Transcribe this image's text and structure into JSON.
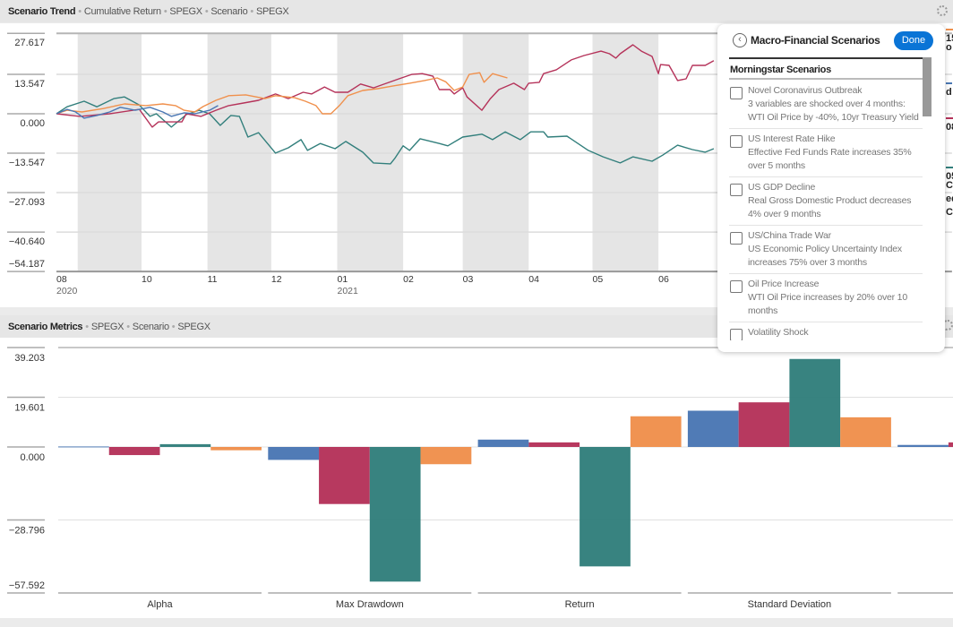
{
  "trend_header": {
    "title": "Scenario Trend",
    "crumbs": [
      "Cumulative Return",
      "SPEGX",
      "Scenario",
      "SPEGX"
    ]
  },
  "metrics_header": {
    "title": "Scenario Metrics",
    "crumbs": [
      "SPEGX",
      "Scenario",
      "SPEGX"
    ]
  },
  "legend_fragments": [
    {
      "text": "15",
      "color": "#f0904c"
    },
    {
      "text": "o",
      "color": null
    },
    {
      "text": "d",
      "color": "#4a77b4"
    },
    {
      "text": "08",
      "color": "#b5335a"
    },
    {
      "text": "05",
      "color": "#327f7c"
    },
    {
      "text": "C",
      "color": null
    },
    {
      "text": "eq",
      "color": null
    },
    {
      "text": "Cr",
      "color": null
    }
  ],
  "popup": {
    "title": "Macro-Financial Scenarios",
    "done_label": "Done",
    "section": "Morningstar Scenarios",
    "items": [
      {
        "title": "Novel Coronavirus Outbreak",
        "desc": "3 variables are shocked over 4 months: WTI Oil Price by -40%, 10yr Treasury Yield by…",
        "checked": false
      },
      {
        "title": "US Interest Rate Hike",
        "desc": "Effective Fed Funds Rate increases 35% over 5 months",
        "checked": false
      },
      {
        "title": "US GDP Decline",
        "desc": "Real Gross Domestic Product decreases 4% over 9 months",
        "checked": false
      },
      {
        "title": "US/China Trade War",
        "desc": "US Economic Policy Uncertainty Index increases 75% over 3 months",
        "checked": false
      },
      {
        "title": "Oil Price Increase",
        "desc": "WTI Oil Price increases by 20% over 10 months",
        "checked": false
      },
      {
        "title": "Volatility Shock",
        "desc": "",
        "checked": false
      }
    ]
  },
  "chart_data": [
    {
      "type": "line",
      "ylim": [
        -54.187,
        27.617
      ],
      "yticks": [
        27.617,
        13.547,
        0.0,
        -13.547,
        -27.093,
        -40.64,
        -54.187
      ],
      "ytick_labels": [
        "27.617",
        "13.547",
        "0.000",
        "−13.547",
        "−27.093",
        "−40.640",
        "−54.187"
      ],
      "xlim": [
        "2020-08-22",
        "2021-10-17"
      ],
      "xticks": [
        {
          "date": "2020-08-22",
          "label": "08",
          "year": "2020"
        },
        {
          "date": "2020-10-01",
          "label": "10",
          "year": ""
        },
        {
          "date": "2020-11-01",
          "label": "11",
          "year": ""
        },
        {
          "date": "2020-12-01",
          "label": "12",
          "year": ""
        },
        {
          "date": "2021-01-01",
          "label": "01",
          "year": "2021"
        },
        {
          "date": "2021-02-01",
          "label": "02",
          "year": ""
        },
        {
          "date": "2021-03-01",
          "label": "03",
          "year": ""
        },
        {
          "date": "2021-04-01",
          "label": "04",
          "year": ""
        },
        {
          "date": "2021-05-01",
          "label": "05",
          "year": ""
        },
        {
          "date": "2021-06-01",
          "label": "06",
          "year": ""
        }
      ],
      "shaded_months": [
        "2020-09",
        "2020-11",
        "2021-01",
        "2021-03",
        "2021-05",
        "2021-07",
        "2021-09"
      ],
      "grid": true,
      "series": [
        {
          "color": "#327f7c",
          "points": [
            [
              "2020-08-22",
              0
            ],
            [
              "2020-08-27",
              2.4
            ],
            [
              "2020-09-04",
              4.3
            ],
            [
              "2020-09-10",
              2.4
            ],
            [
              "2020-09-18",
              5.2
            ],
            [
              "2020-09-23",
              5.8
            ],
            [
              "2020-09-30",
              3
            ],
            [
              "2020-10-05",
              -0.9
            ],
            [
              "2020-10-08",
              0
            ],
            [
              "2020-10-15",
              -4.6
            ],
            [
              "2020-10-22",
              -0.3
            ],
            [
              "2020-10-28",
              1.2
            ],
            [
              "2020-11-02",
              0
            ],
            [
              "2020-11-07",
              -4
            ],
            [
              "2020-11-12",
              -0.6
            ],
            [
              "2020-11-16",
              -0.9
            ],
            [
              "2020-11-20",
              -8
            ],
            [
              "2020-11-25",
              -6.5
            ],
            [
              "2020-12-03",
              -13.5
            ],
            [
              "2020-12-09",
              -11.7
            ],
            [
              "2020-12-15",
              -8.9
            ],
            [
              "2020-12-18",
              -12.6
            ],
            [
              "2020-12-24",
              -10.2
            ],
            [
              "2020-12-31",
              -12
            ],
            [
              "2021-01-05",
              -9.5
            ],
            [
              "2021-01-13",
              -13.2
            ],
            [
              "2021-01-18",
              -16.9
            ],
            [
              "2021-01-26",
              -17.2
            ],
            [
              "2021-01-28",
              -15.4
            ],
            [
              "2021-02-01",
              -11
            ],
            [
              "2021-02-04",
              -12.6
            ],
            [
              "2021-02-09",
              -8.6
            ],
            [
              "2021-02-18",
              -10.2
            ],
            [
              "2021-02-22",
              -11
            ],
            [
              "2021-03-01",
              -8
            ],
            [
              "2021-03-10",
              -7
            ],
            [
              "2021-03-15",
              -8.9
            ],
            [
              "2021-03-21",
              -6.2
            ],
            [
              "2021-03-28",
              -8.9
            ],
            [
              "2021-04-02",
              -6.2
            ],
            [
              "2021-04-08",
              -6.2
            ],
            [
              "2021-04-10",
              -8
            ],
            [
              "2021-04-19",
              -7.7
            ],
            [
              "2021-04-29",
              -12.6
            ],
            [
              "2021-05-06",
              -14.8
            ],
            [
              "2021-05-14",
              -16.9
            ],
            [
              "2021-05-20",
              -14.8
            ],
            [
              "2021-05-29",
              -16.3
            ],
            [
              "2021-06-03",
              -14.2
            ],
            [
              "2021-06-10",
              -10.8
            ],
            [
              "2021-06-17",
              -12.3
            ],
            [
              "2021-06-23",
              -13.2
            ],
            [
              "2021-06-27",
              -12
            ]
          ]
        },
        {
          "color": "#b5335a",
          "points": [
            [
              "2020-08-22",
              0
            ],
            [
              "2020-09-02",
              -0.9
            ],
            [
              "2020-09-16",
              0
            ],
            [
              "2020-09-30",
              1.5
            ],
            [
              "2020-10-06",
              -4.6
            ],
            [
              "2020-10-09",
              -2.8
            ],
            [
              "2020-10-15",
              -2.8
            ],
            [
              "2020-10-20",
              -2.8
            ],
            [
              "2020-10-22",
              0
            ],
            [
              "2020-10-29",
              -0.9
            ],
            [
              "2020-11-05",
              1.2
            ],
            [
              "2020-11-11",
              2.8
            ],
            [
              "2020-11-18",
              3.7
            ],
            [
              "2020-11-25",
              4.6
            ],
            [
              "2020-12-03",
              6.8
            ],
            [
              "2020-12-09",
              5.2
            ],
            [
              "2020-12-16",
              7.4
            ],
            [
              "2020-12-20",
              6.8
            ],
            [
              "2020-12-26",
              9.2
            ],
            [
              "2020-12-31",
              7.4
            ],
            [
              "2021-01-06",
              7.4
            ],
            [
              "2021-01-12",
              10.2
            ],
            [
              "2021-01-18",
              8.9
            ],
            [
              "2021-01-30",
              12
            ],
            [
              "2021-02-05",
              13.5
            ],
            [
              "2021-02-10",
              13.8
            ],
            [
              "2021-02-15",
              12.9
            ],
            [
              "2021-02-18",
              8.3
            ],
            [
              "2021-02-23",
              8.3
            ],
            [
              "2021-02-25",
              6.8
            ],
            [
              "2021-03-01",
              8.9
            ],
            [
              "2021-03-03",
              5.8
            ],
            [
              "2021-03-10",
              1.2
            ],
            [
              "2021-03-14",
              5.2
            ],
            [
              "2021-03-18",
              8.3
            ],
            [
              "2021-03-25",
              10.5
            ],
            [
              "2021-03-30",
              8.3
            ],
            [
              "2021-04-01",
              10.5
            ],
            [
              "2021-04-06",
              10.8
            ],
            [
              "2021-04-08",
              13.8
            ],
            [
              "2021-04-14",
              15.1
            ],
            [
              "2021-04-21",
              18.5
            ],
            [
              "2021-04-27",
              20
            ],
            [
              "2021-05-05",
              21.5
            ],
            [
              "2021-05-09",
              20.6
            ],
            [
              "2021-05-12",
              19.1
            ],
            [
              "2021-05-14",
              20.6
            ],
            [
              "2021-05-20",
              23.7
            ],
            [
              "2021-05-24",
              21.5
            ],
            [
              "2021-05-29",
              19.7
            ],
            [
              "2021-06-01",
              13.8
            ],
            [
              "2021-06-02",
              16.9
            ],
            [
              "2021-06-06",
              16.6
            ],
            [
              "2021-06-10",
              11.4
            ],
            [
              "2021-06-14",
              12
            ],
            [
              "2021-06-17",
              16.6
            ],
            [
              "2021-06-23",
              16.6
            ],
            [
              "2021-06-27",
              18.2
            ]
          ]
        },
        {
          "color": "#f0904c",
          "points": [
            [
              "2020-08-22",
              0
            ],
            [
              "2020-08-27",
              1.2
            ],
            [
              "2020-09-03",
              0.6
            ],
            [
              "2020-09-13",
              1.8
            ],
            [
              "2020-09-23",
              3.4
            ],
            [
              "2020-10-03",
              2.8
            ],
            [
              "2020-10-11",
              3.4
            ],
            [
              "2020-10-17",
              2.8
            ],
            [
              "2020-10-21",
              1.2
            ],
            [
              "2020-10-26",
              0.6
            ],
            [
              "2020-10-30",
              2.5
            ],
            [
              "2020-11-05",
              4.6
            ],
            [
              "2020-11-11",
              6.2
            ],
            [
              "2020-11-19",
              6.5
            ],
            [
              "2020-11-28",
              5.2
            ],
            [
              "2020-12-03",
              6.2
            ],
            [
              "2020-12-12",
              5.5
            ],
            [
              "2020-12-17",
              4.3
            ],
            [
              "2020-12-22",
              2.8
            ],
            [
              "2020-12-25",
              0
            ],
            [
              "2020-12-29",
              0
            ],
            [
              "2021-01-02",
              2.8
            ],
            [
              "2021-01-06",
              6.2
            ],
            [
              "2021-01-13",
              8
            ],
            [
              "2021-01-20",
              8.6
            ],
            [
              "2021-01-27",
              9.5
            ],
            [
              "2021-02-04",
              10.5
            ],
            [
              "2021-02-11",
              11.4
            ],
            [
              "2021-02-17",
              12.3
            ],
            [
              "2021-02-21",
              11
            ],
            [
              "2021-02-25",
              8
            ],
            [
              "2021-03-01",
              9.2
            ],
            [
              "2021-03-04",
              13.5
            ],
            [
              "2021-03-09",
              14.1
            ],
            [
              "2021-03-11",
              10.8
            ],
            [
              "2021-03-15",
              13.8
            ],
            [
              "2021-03-22",
              12.3
            ]
          ]
        },
        {
          "color": "#4a77b4",
          "points": [
            [
              "2020-08-22",
              0
            ],
            [
              "2020-08-27",
              1.5
            ],
            [
              "2020-08-31",
              0.6
            ],
            [
              "2020-09-04",
              -1.5
            ],
            [
              "2020-09-10",
              -0.6
            ],
            [
              "2020-09-16",
              0.6
            ],
            [
              "2020-09-21",
              2.2
            ],
            [
              "2020-09-28",
              1.2
            ],
            [
              "2020-10-05",
              2.2
            ],
            [
              "2020-10-11",
              0.6
            ],
            [
              "2020-10-15",
              -0.9
            ],
            [
              "2020-10-21",
              0.3
            ],
            [
              "2020-10-26",
              0
            ],
            [
              "2020-11-02",
              1.2
            ],
            [
              "2020-11-06",
              2.8
            ]
          ]
        }
      ]
    },
    {
      "type": "bar",
      "ylim": [
        -57.592,
        39.203
      ],
      "yticks": [
        39.203,
        19.601,
        0.0,
        -28.796,
        -57.592
      ],
      "ytick_labels": [
        "39.203",
        "19.601",
        "0.000",
        "−28.796",
        "−57.592"
      ],
      "grid": true,
      "categories": [
        "Alpha",
        "Max Drawdown",
        "Return",
        "Standard Deviation",
        ""
      ],
      "series": [
        {
          "color": "#4a77b4",
          "values": [
            0.2,
            -5.1,
            2.9,
            14.3,
            0.8
          ]
        },
        {
          "color": "#b5335a",
          "values": [
            -3.2,
            -22.5,
            1.8,
            17.6,
            1.8
          ]
        },
        {
          "color": "#327f7c",
          "values": [
            1.1,
            -53.1,
            -47.1,
            34.7,
            null
          ]
        },
        {
          "color": "#f0904c",
          "values": [
            -1.3,
            -6.8,
            12.1,
            11.7,
            null
          ]
        }
      ]
    }
  ]
}
